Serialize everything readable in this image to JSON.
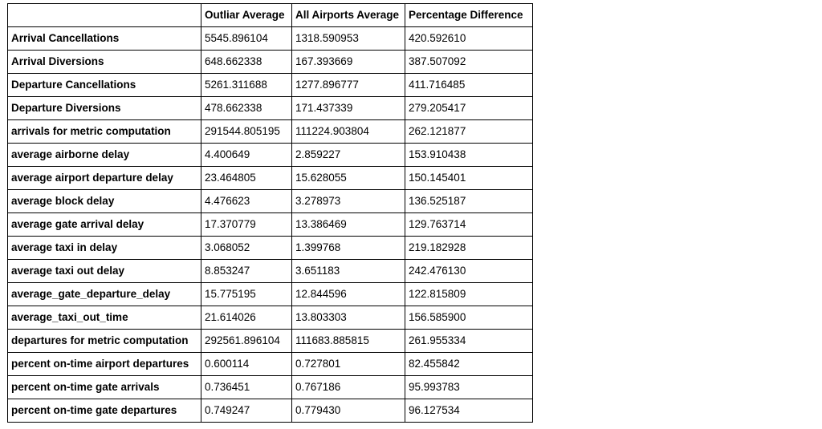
{
  "table": {
    "headers": [
      "",
      "Outliar Average",
      "All Airports Average",
      "Percentage Difference"
    ],
    "rows": [
      {
        "label": "Arrival Cancellations",
        "values": [
          "5545.896104",
          "1318.590953",
          "420.592610"
        ]
      },
      {
        "label": "Arrival Diversions",
        "values": [
          "648.662338",
          "167.393669",
          "387.507092"
        ]
      },
      {
        "label": "Departure Cancellations",
        "values": [
          "5261.311688",
          "1277.896777",
          "411.716485"
        ]
      },
      {
        "label": "Departure Diversions",
        "values": [
          "478.662338",
          "171.437339",
          "279.205417"
        ]
      },
      {
        "label": "arrivals for metric computation",
        "values": [
          "291544.805195",
          "111224.903804",
          "262.121877"
        ]
      },
      {
        "label": "average airborne delay",
        "values": [
          "4.400649",
          "2.859227",
          "153.910438"
        ]
      },
      {
        "label": "average airport departure delay",
        "values": [
          "23.464805",
          "15.628055",
          "150.145401"
        ]
      },
      {
        "label": "average block delay",
        "values": [
          "4.476623",
          "3.278973",
          "136.525187"
        ]
      },
      {
        "label": "average gate arrival delay",
        "values": [
          "17.370779",
          "13.386469",
          "129.763714"
        ]
      },
      {
        "label": "average taxi in delay",
        "values": [
          "3.068052",
          "1.399768",
          "219.182928"
        ]
      },
      {
        "label": "average taxi out delay",
        "values": [
          "8.853247",
          "3.651183",
          "242.476130"
        ]
      },
      {
        "label": "average_gate_departure_delay",
        "values": [
          "15.775195",
          "12.844596",
          "122.815809"
        ]
      },
      {
        "label": "average_taxi_out_time",
        "values": [
          "21.614026",
          "13.803303",
          "156.585900"
        ]
      },
      {
        "label": "departures for metric computation",
        "values": [
          "292561.896104",
          "111683.885815",
          "261.955334"
        ]
      },
      {
        "label": "percent on-time airport departures",
        "values": [
          "0.600114",
          "0.727801",
          "82.455842"
        ]
      },
      {
        "label": "percent on-time gate arrivals",
        "values": [
          "0.736451",
          "0.767186",
          "95.993783"
        ]
      },
      {
        "label": "percent on-time gate departures",
        "values": [
          "0.749247",
          "0.779430",
          "96.127534"
        ]
      }
    ]
  }
}
